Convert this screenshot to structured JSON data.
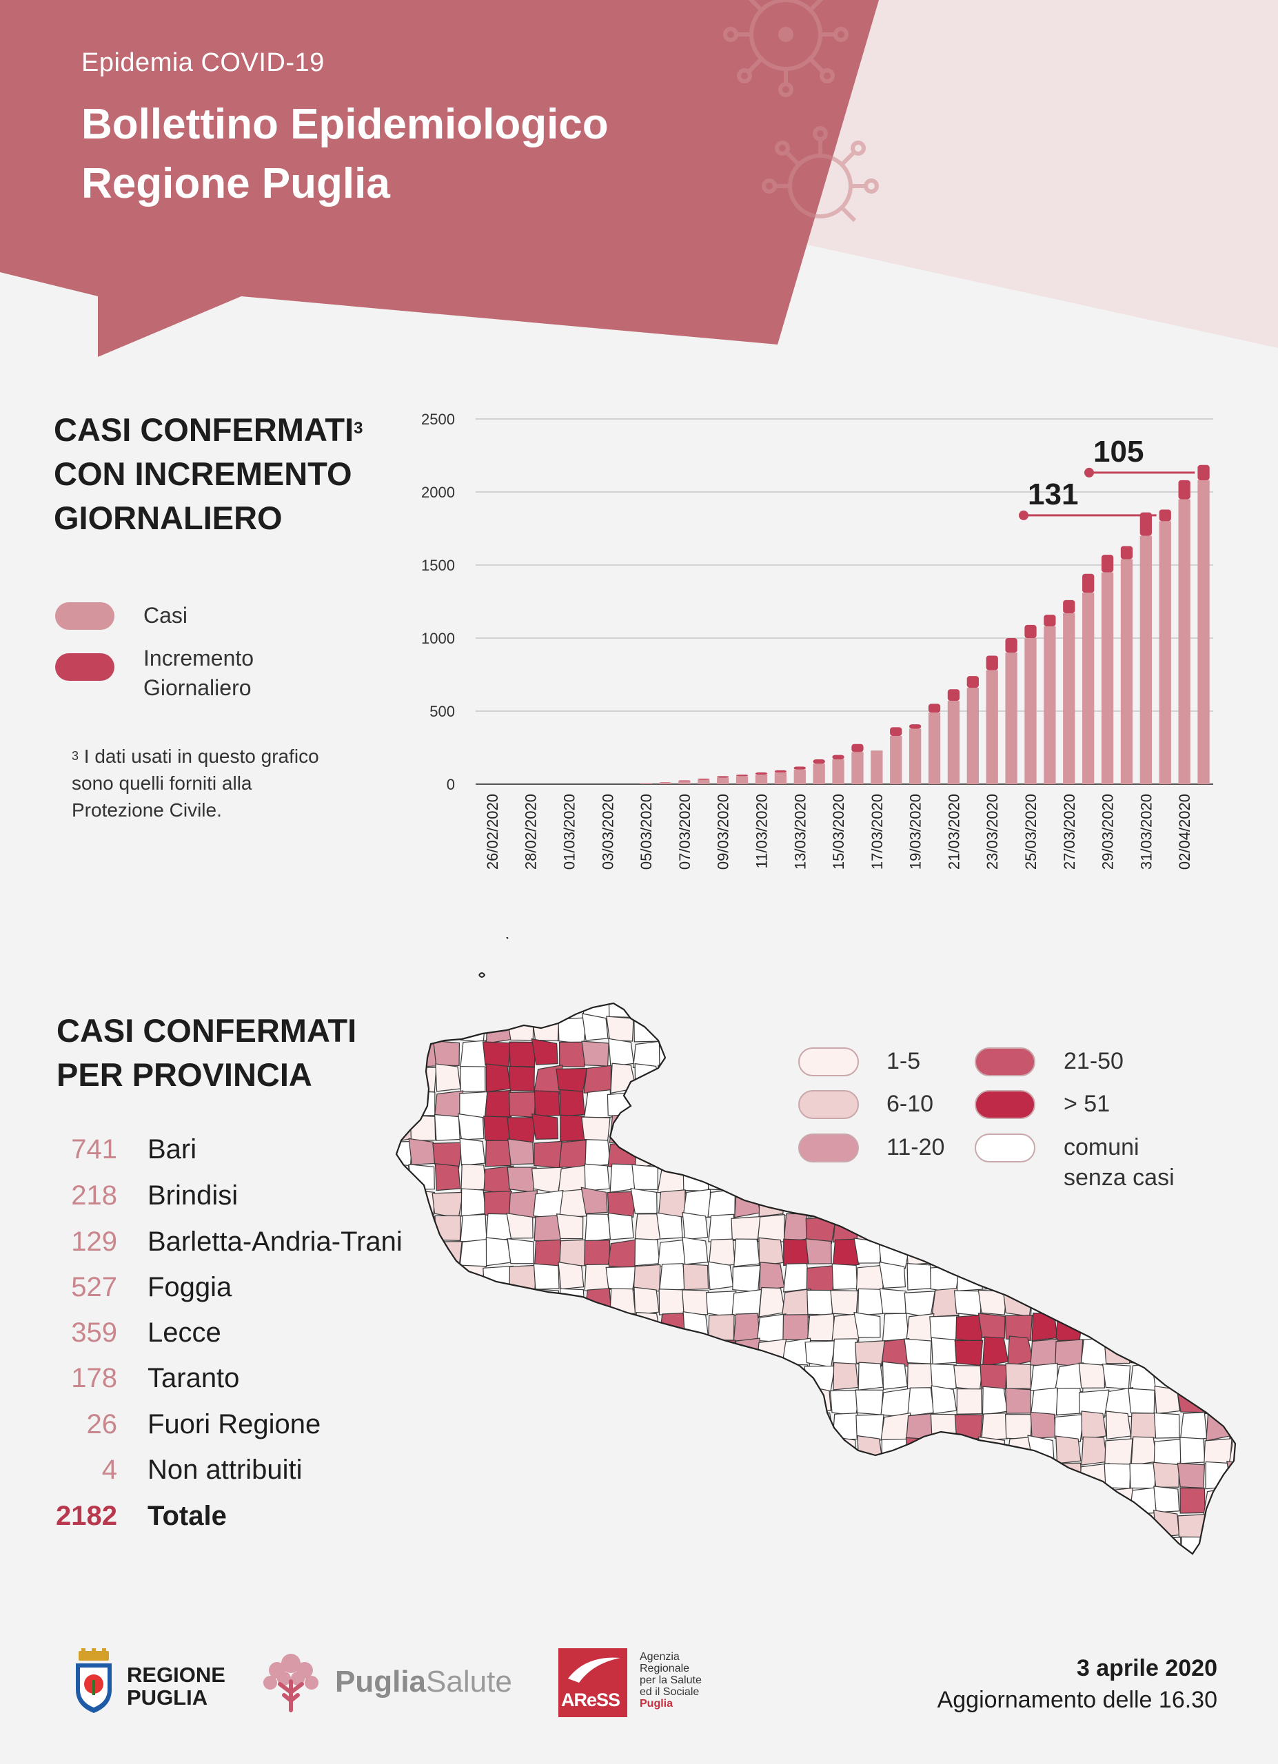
{
  "header": {
    "subtitle": "Epidemia COVID-19",
    "title_line1": "Bollettino Epidemiologico",
    "title_line2": "Regione Puglia"
  },
  "chart_section": {
    "title_line1": "CASI CONFERMATI",
    "title_sup": "3",
    "title_line2": "CON INCREMENTO",
    "title_line3": "GIORNALIERO",
    "legend": [
      {
        "label": "Casi",
        "color": "#d4959d"
      },
      {
        "label_line1": "Incremento",
        "label_line2": "Giornaliero",
        "color": "#c2435a"
      }
    ],
    "footnote_sup": "3",
    "footnote_line1": "I dati usati in questo grafico",
    "footnote_line2": "sono quelli forniti alla",
    "footnote_line3": "Protezione Civile."
  },
  "chart_data": {
    "type": "bar",
    "stacked": true,
    "categories": [
      "26/02/2020",
      "27/02/2020",
      "28/02/2020",
      "29/02/2020",
      "01/03/2020",
      "02/03/2020",
      "03/03/2020",
      "04/03/2020",
      "05/03/2020",
      "06/03/2020",
      "07/03/2020",
      "08/03/2020",
      "09/03/2020",
      "10/03/2020",
      "11/03/2020",
      "12/03/2020",
      "13/03/2020",
      "14/03/2020",
      "15/03/2020",
      "16/03/2020",
      "17/03/2020",
      "18/03/2020",
      "19/03/2020",
      "20/03/2020",
      "21/03/2020",
      "22/03/2020",
      "23/03/2020",
      "24/03/2020",
      "25/03/2020",
      "26/03/2020",
      "27/03/2020",
      "28/03/2020",
      "29/03/2020",
      "30/03/2020",
      "31/03/2020",
      "01/04/2020",
      "02/04/2020",
      "03/04/2020"
    ],
    "tick_labels": [
      "26/02/2020",
      "28/02/2020",
      "01/03/2020",
      "03/03/2020",
      "05/03/2020",
      "07/03/2020",
      "09/03/2020",
      "11/03/2020",
      "13/03/2020",
      "15/03/2020",
      "17/03/2020",
      "19/03/2020",
      "21/03/2020",
      "23/03/2020",
      "25/03/2020",
      "27/03/2020",
      "29/03/2020",
      "31/03/2020",
      "02/04/2020"
    ],
    "series": [
      {
        "name": "Casi",
        "color": "#d4959d",
        "values": [
          0,
          0,
          0,
          0,
          0,
          0,
          0,
          0,
          4,
          10,
          20,
          30,
          45,
          55,
          65,
          80,
          100,
          140,
          170,
          220,
          230,
          330,
          380,
          490,
          570,
          660,
          780,
          900,
          1000,
          1080,
          1170,
          1310,
          1450,
          1540,
          1700,
          1800,
          1950,
          2080
        ]
      },
      {
        "name": "Incremento Giornaliero",
        "color": "#c2435a",
        "values": [
          0,
          0,
          0,
          0,
          0,
          0,
          0,
          0,
          2,
          3,
          6,
          8,
          10,
          10,
          15,
          15,
          20,
          30,
          30,
          55,
          0,
          60,
          30,
          60,
          80,
          80,
          100,
          100,
          90,
          80,
          90,
          130,
          120,
          90,
          160,
          80,
          131,
          105
        ]
      }
    ],
    "annotations": [
      {
        "text": "131",
        "category": "01/04/2020"
      },
      {
        "text": "105",
        "category": "03/04/2020"
      }
    ],
    "ylim": [
      0,
      2500
    ],
    "yticks": [
      0,
      500,
      1000,
      1500,
      2000,
      2500
    ],
    "grid": true,
    "xlabel": "",
    "ylabel": ""
  },
  "province_section": {
    "title_line1": "CASI CONFERMATI",
    "title_line2": "PER PROVINCIA",
    "rows": [
      {
        "value": "741",
        "name": "Bari"
      },
      {
        "value": "218",
        "name": "Brindisi"
      },
      {
        "value": "129",
        "name": "Barletta-Andria-Trani"
      },
      {
        "value": "527",
        "name": "Foggia"
      },
      {
        "value": "359",
        "name": "Lecce"
      },
      {
        "value": "178",
        "name": "Taranto"
      },
      {
        "value": "26",
        "name": "Fuori Regione"
      },
      {
        "value": "4",
        "name": "Non attribuiti"
      }
    ],
    "total": {
      "value": "2182",
      "name": "Totale"
    },
    "map_legend": [
      {
        "label": "1-5",
        "color": "#fdf1ef"
      },
      {
        "label": "6-10",
        "color": "#efd0d0"
      },
      {
        "label": "11-20",
        "color": "#d89aa6"
      },
      {
        "label": "21-50",
        "color": "#c8566d"
      },
      {
        "label": "> 51",
        "color": "#bf2a48"
      },
      {
        "label_line1": "comuni",
        "label_line2": "senza casi",
        "color": "#ffffff"
      }
    ]
  },
  "footer": {
    "regione_line1": "REGIONE",
    "regione_line2": "PUGLIA",
    "puglia_bold": "Puglia",
    "puglia_light": "Salute",
    "aress_mark": "AReSS",
    "aress_line1": "Agenzia",
    "aress_line2": "Regionale",
    "aress_line3": "per la Salute",
    "aress_line4": "ed il Sociale",
    "aress_line5": "Puglia",
    "date": "3 aprile 2020",
    "update": "Aggiornamento delle 16.30"
  },
  "colors": {
    "header_bg": "#bf6a72",
    "header_light": "#f2e3e3",
    "accent": "#c2435a",
    "casi": "#d4959d"
  }
}
